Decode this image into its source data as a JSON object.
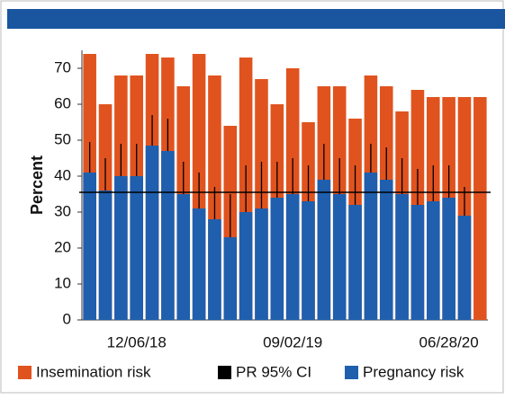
{
  "chart_data": {
    "type": "bar",
    "y_label": "Percent",
    "categories": [
      null,
      null,
      null,
      "12/06/18",
      null,
      null,
      null,
      null,
      null,
      null,
      null,
      null,
      null,
      "09/02/19",
      null,
      null,
      null,
      null,
      null,
      null,
      null,
      null,
      null,
      "06/28/20",
      null,
      null
    ],
    "series": [
      {
        "name": "Insemination risk",
        "color": "#e0531f",
        "values": [
          74,
          60,
          68,
          68,
          74,
          73,
          65,
          74,
          68,
          54,
          73,
          67,
          60,
          70,
          55,
          65,
          65,
          56,
          68,
          65,
          58,
          64,
          62,
          62,
          62,
          62
        ]
      },
      {
        "name": "Pregnancy risk",
        "color": "#1f5fae",
        "values": [
          41,
          36,
          40,
          40,
          48.5,
          47,
          35,
          31,
          28,
          23,
          30,
          31,
          34,
          35,
          33,
          39,
          35,
          32,
          41,
          39,
          35,
          32,
          33,
          34,
          29,
          null
        ]
      }
    ],
    "ci": {
      "name": "PR 95% CI",
      "color": "#000000",
      "upper": [
        49.5,
        45,
        49,
        49,
        57,
        56,
        44,
        41,
        37,
        35,
        43,
        44,
        44,
        45,
        43,
        49,
        45,
        43,
        49,
        48,
        45,
        42,
        43,
        43,
        37,
        null
      ]
    },
    "reference_line": 35.5,
    "ylim": [
      0,
      75
    ],
    "yticks": [
      0,
      10,
      20,
      30,
      40,
      50,
      60,
      70
    ]
  }
}
